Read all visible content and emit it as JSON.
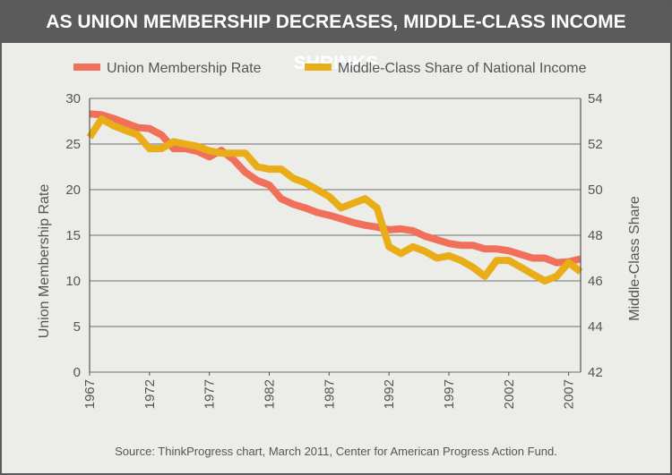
{
  "chart_data": {
    "type": "line",
    "title": "AS UNION MEMBERSHIP DECREASES, MIDDLE-CLASS INCOME SHRINKS",
    "source": "Source: ThinkProgress chart, March 2011, Center for American Progress Action Fund.",
    "ylabel_left": "Union Membership Rate",
    "ylabel_right": "Middle-Class Share",
    "ylim_left": [
      0,
      30
    ],
    "ylim_right": [
      42,
      54
    ],
    "yticks_left": [
      "0",
      "5",
      "10",
      "15",
      "20",
      "25",
      "30"
    ],
    "yticks_right": [
      "42",
      "44",
      "46",
      "48",
      "50",
      "52",
      "54"
    ],
    "xticks": [
      "1967",
      "1972",
      "1977",
      "1982",
      "1987",
      "1992",
      "1997",
      "2002",
      "2007"
    ],
    "grid": true,
    "legend_position": "top",
    "colors": {
      "union": "#f0705a",
      "middle_class": "#e8ad17"
    },
    "series": [
      {
        "name": "Union Membership Rate",
        "axis": "left",
        "x": [
          1967,
          1968,
          1969,
          1970,
          1971,
          1972,
          1973,
          1974,
          1975,
          1976,
          1977,
          1978,
          1979,
          1980,
          1981,
          1982,
          1983,
          1984,
          1985,
          1986,
          1987,
          1988,
          1989,
          1990,
          1991,
          1992,
          1993,
          1994,
          1995,
          1996,
          1997,
          1998,
          1999,
          2000,
          2001,
          2002,
          2003,
          2004,
          2005,
          2006,
          2007,
          2008
        ],
        "values": [
          28.3,
          28.2,
          27.8,
          27.3,
          26.8,
          26.7,
          26.0,
          24.5,
          24.5,
          24.2,
          23.6,
          24.3,
          23.3,
          21.9,
          21.0,
          20.5,
          19.0,
          18.4,
          18.0,
          17.5,
          17.2,
          16.8,
          16.4,
          16.1,
          15.9,
          15.6,
          15.7,
          15.5,
          14.9,
          14.5,
          14.1,
          13.9,
          13.9,
          13.5,
          13.5,
          13.3,
          12.9,
          12.5,
          12.5,
          12.0,
          12.1,
          12.4
        ]
      },
      {
        "name": "Middle-Class Share of National Income",
        "axis": "right",
        "x": [
          1967,
          1968,
          1969,
          1970,
          1971,
          1972,
          1973,
          1974,
          1975,
          1976,
          1977,
          1978,
          1979,
          1980,
          1981,
          1982,
          1983,
          1984,
          1985,
          1986,
          1987,
          1988,
          1989,
          1990,
          1991,
          1992,
          1993,
          1994,
          1995,
          1996,
          1997,
          1998,
          1999,
          2000,
          2001,
          2002,
          2003,
          2004,
          2005,
          2006,
          2007,
          2008
        ],
        "values": [
          52.3,
          53.1,
          52.8,
          52.6,
          52.4,
          51.8,
          51.8,
          52.1,
          52.0,
          51.9,
          51.7,
          51.6,
          51.6,
          51.6,
          51.0,
          50.9,
          50.9,
          50.5,
          50.3,
          50.0,
          49.7,
          49.2,
          49.4,
          49.6,
          49.2,
          47.5,
          47.2,
          47.5,
          47.3,
          47.0,
          47.1,
          46.9,
          46.6,
          46.2,
          46.9,
          46.9,
          46.6,
          46.3,
          46.0,
          46.2,
          46.8,
          46.4
        ]
      }
    ]
  }
}
